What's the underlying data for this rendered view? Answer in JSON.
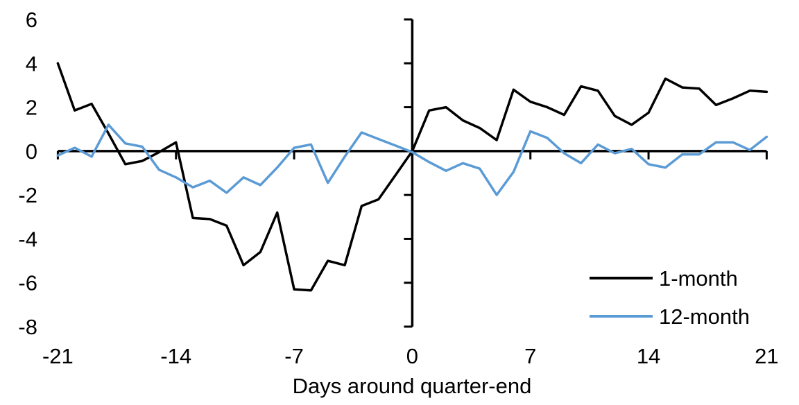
{
  "chart_data": {
    "type": "line",
    "title": "",
    "xlabel": "Days around quarter-end",
    "ylabel": "",
    "xlim": [
      -21,
      21
    ],
    "ylim": [
      -8,
      6
    ],
    "x_ticks": [
      -21,
      -14,
      -7,
      0,
      7,
      14,
      21
    ],
    "y_ticks": [
      6,
      4,
      2,
      0,
      -2,
      -4,
      -6,
      -8
    ],
    "grid": false,
    "legend_position": "lower right",
    "background_color": "#FFFFFF",
    "axis_color": "#000000",
    "x": [
      -21,
      -20,
      -19,
      -18,
      -17,
      -16,
      -15,
      -14,
      -13,
      -12,
      -11,
      -10,
      -9,
      -8,
      -7,
      -6,
      -5,
      -4,
      -3,
      -2,
      -1,
      0,
      1,
      2,
      3,
      4,
      5,
      6,
      7,
      8,
      9,
      10,
      11,
      12,
      13,
      14,
      15,
      16,
      17,
      18,
      19,
      20,
      21
    ],
    "series": [
      {
        "name": "1-month",
        "color": "#000000",
        "values": [
          4.0,
          1.85,
          2.15,
          0.8,
          -0.6,
          -0.45,
          -0.05,
          0.4,
          -3.05,
          -3.1,
          -3.4,
          -5.2,
          -4.6,
          -2.8,
          -6.3,
          -6.35,
          -5.0,
          -5.2,
          -2.5,
          -2.2,
          -1.1,
          0.0,
          1.85,
          2.0,
          1.4,
          1.05,
          0.5,
          2.8,
          2.25,
          2.0,
          1.65,
          2.95,
          2.75,
          1.6,
          1.2,
          1.75,
          3.3,
          2.9,
          2.85,
          2.1,
          2.4,
          2.75,
          2.7
        ]
      },
      {
        "name": "12-month",
        "color": "#5B9BD5",
        "values": [
          -0.2,
          0.15,
          -0.25,
          1.2,
          0.35,
          0.2,
          -0.85,
          -1.2,
          -1.65,
          -1.35,
          -1.9,
          -1.2,
          -1.55,
          -0.75,
          0.15,
          0.3,
          -1.45,
          -0.25,
          0.85,
          0.55,
          0.25,
          -0.05,
          -0.5,
          -0.9,
          -0.55,
          -0.8,
          -2.0,
          -0.95,
          0.9,
          0.6,
          -0.1,
          -0.55,
          0.3,
          -0.1,
          0.1,
          -0.6,
          -0.75,
          -0.15,
          -0.15,
          0.4,
          0.4,
          0.05,
          0.65
        ]
      }
    ]
  }
}
